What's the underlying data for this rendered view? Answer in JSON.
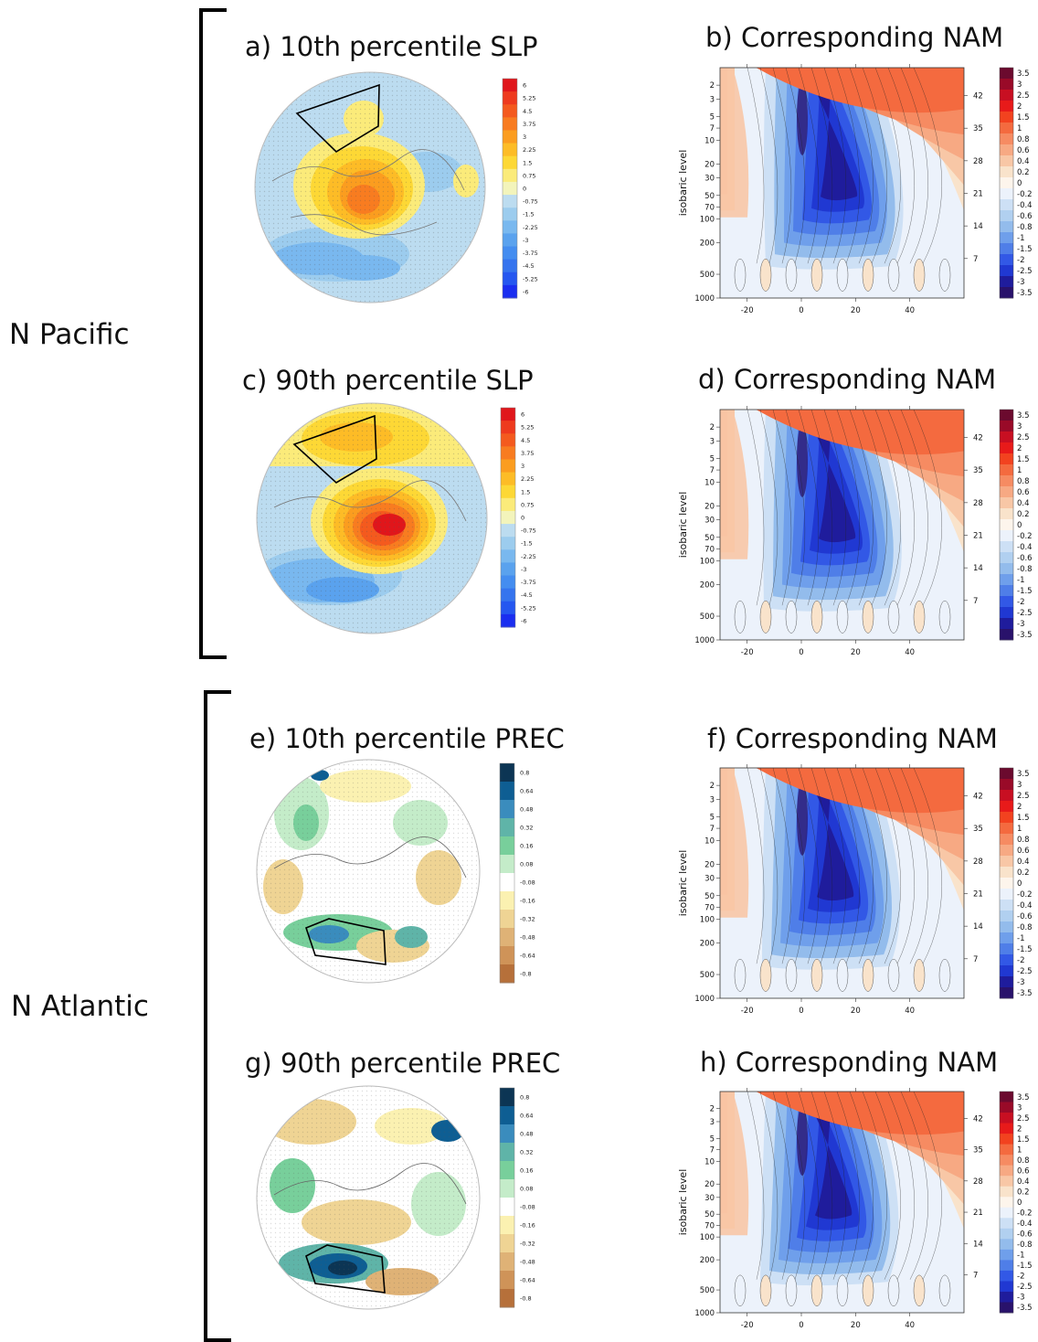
{
  "figure": {
    "regions": [
      {
        "name": "N Pacific"
      },
      {
        "name": "N Atlantic"
      }
    ],
    "panels": [
      {
        "id": "a",
        "title": "a) 10th percentile SLP",
        "kind": "slp"
      },
      {
        "id": "b",
        "title": "b) Corresponding NAM",
        "kind": "nam"
      },
      {
        "id": "c",
        "title": "c) 90th percentile SLP",
        "kind": "slp"
      },
      {
        "id": "d",
        "title": "d) Corresponding NAM",
        "kind": "nam"
      },
      {
        "id": "e",
        "title": "e) 10th percentile PREC",
        "kind": "prec"
      },
      {
        "id": "f",
        "title": "f) Corresponding NAM",
        "kind": "nam"
      },
      {
        "id": "g",
        "title": "g) 90th percentile PREC",
        "kind": "prec"
      },
      {
        "id": "h",
        "title": "h) Corresponding NAM",
        "kind": "nam"
      }
    ],
    "slp_colorbar": {
      "labels": [
        "6",
        "5.25",
        "4.5",
        "3.75",
        "3",
        "2.25",
        "1.5",
        "0.75",
        "0",
        "-0.75",
        "-1.5",
        "-2.25",
        "-3",
        "-3.75",
        "-4.5",
        "-5.25",
        "-6"
      ],
      "colors": [
        "#e0161b",
        "#ee3a1e",
        "#f45a1e",
        "#f87c20",
        "#fb9d1f",
        "#fdbc26",
        "#fdd835",
        "#fbeb7a",
        "#f3f4bb",
        "#bcdcf0",
        "#9cccee",
        "#79b8ef",
        "#5aa2ee",
        "#448df0",
        "#3574ee",
        "#2557f0",
        "#1a2ef0"
      ]
    },
    "prec_colorbar": {
      "labels": [
        "0.8",
        "0.64",
        "0.48",
        "0.32",
        "0.16",
        "0.08",
        "-0.08",
        "-0.16",
        "-0.32",
        "-0.48",
        "-0.64",
        "-0.8"
      ],
      "colors": [
        "#0c3554",
        "#0e5e93",
        "#3a8cbd",
        "#5fb4a8",
        "#78cf9b",
        "#c4ecc9",
        "#ffffff",
        "#fbf1b1",
        "#efd494",
        "#dfb276",
        "#cf9358",
        "#b6703a"
      ]
    },
    "nam_colorbar": {
      "labels": [
        "3.5",
        "3",
        "2.5",
        "2",
        "1.5",
        "1",
        "0.8",
        "0.6",
        "0.4",
        "0.2",
        "0",
        "-0.2",
        "-0.4",
        "-0.6",
        "-0.8",
        "-1",
        "-1.5",
        "-2",
        "-2.5",
        "-3",
        "-3.5"
      ],
      "colors": [
        "#6b0a2e",
        "#990a28",
        "#c80f22",
        "#e81a1a",
        "#f2421f",
        "#f46a3f",
        "#f68b62",
        "#f7a983",
        "#f8c7a6",
        "#f9e3cb",
        "#fdf5ec",
        "#ecf2fb",
        "#cde0f5",
        "#b1d0f0",
        "#93bcec",
        "#6f9feb",
        "#4f7ee8",
        "#3258e6",
        "#2038d2",
        "#1f1c9c",
        "#29126b"
      ]
    },
    "nam_axes": {
      "ylabel": "isobaric level",
      "left_ticks": [
        "2",
        "3",
        "5",
        "7",
        "10",
        "20",
        "30",
        "50",
        "70",
        "100",
        "200",
        "500",
        "1000"
      ],
      "right_ticks": [
        "42",
        "35",
        "28",
        "21",
        "14",
        "7"
      ],
      "x_ticks": [
        "-20",
        "0",
        "20",
        "40"
      ]
    }
  }
}
